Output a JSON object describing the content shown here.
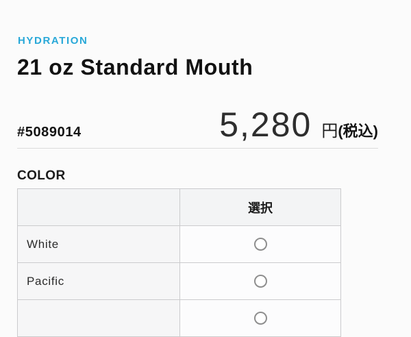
{
  "theme": {
    "accent_color": "#28a8d8",
    "page_background": "#fbfbfb",
    "table_header_background": "#f3f4f5",
    "name_cell_background": "#f6f6f7",
    "border_color": "#cbcbcd"
  },
  "product": {
    "category": "HYDRATION",
    "title": "21 oz Standard Mouth",
    "sku": "#5089014",
    "price": "5,280",
    "price_unit": "円",
    "price_tax_note": "(税込)"
  },
  "color_section": {
    "label": "COLOR",
    "table": {
      "select_header": "選択",
      "rows": [
        {
          "name": "White",
          "selected": false
        },
        {
          "name": "Pacific",
          "selected": false
        },
        {
          "name": "",
          "selected": false
        }
      ]
    }
  }
}
